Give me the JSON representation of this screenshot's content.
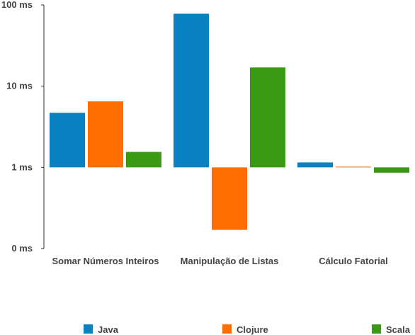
{
  "chart_data": {
    "type": "bar",
    "scale": "log",
    "title": "",
    "xlabel": "",
    "ylabel": "",
    "categories": [
      "Somar Números Inteiros",
      "Manipulação de Listas",
      "Cálculo Fatorial"
    ],
    "series": [
      {
        "name": "Java",
        "color": "#0a82c2",
        "values": [
          4.7,
          78,
          1.15
        ]
      },
      {
        "name": "Clojure",
        "color": "#ff6e00",
        "values": [
          6.5,
          0.17,
          1.02
        ]
      },
      {
        "name": "Scala",
        "color": "#3b9a13",
        "values": [
          1.55,
          17,
          0.86
        ]
      }
    ],
    "y_ticks": [
      {
        "value": 0.1,
        "label": "0 ms"
      },
      {
        "value": 1,
        "label": "1 ms"
      },
      {
        "value": 10,
        "label": "10 ms"
      },
      {
        "value": 100,
        "label": "100 ms"
      }
    ],
    "ylim": [
      0.1,
      100
    ],
    "baseline": 1,
    "grid": false,
    "legend_position": "bottom"
  }
}
